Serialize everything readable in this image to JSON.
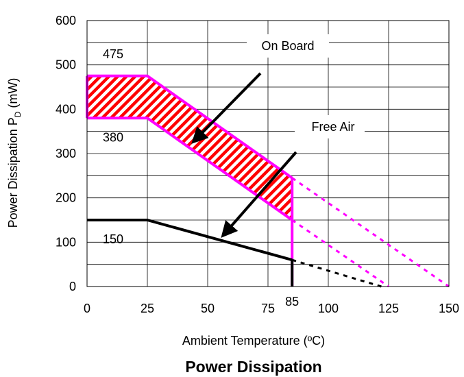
{
  "chart_data": {
    "type": "line",
    "title": "Power Dissipation",
    "xlabel": "Ambient Temperature (ºC)",
    "ylabel_main": "Power Dissipation P",
    "ylabel_sub": "D",
    "ylabel_unit": " (mW)",
    "xlim": [
      0,
      150
    ],
    "ylim": [
      0,
      600
    ],
    "x_ticks": [
      "0",
      "25",
      "50",
      "75",
      "100",
      "125",
      "150"
    ],
    "y_ticks": [
      "0",
      "100",
      "200",
      "300",
      "400",
      "500",
      "600"
    ],
    "extra_x_tick": "85",
    "grid": true,
    "colors": {
      "on_board": "#ff00ff",
      "hatch": "#ff0000",
      "free_air": "#000000"
    },
    "series": [
      {
        "name": "On Board",
        "upper": [
          [
            0,
            475
          ],
          [
            25,
            475
          ],
          [
            85,
            245
          ]
        ],
        "lower": [
          [
            0,
            380
          ],
          [
            25,
            380
          ],
          [
            85,
            150
          ]
        ],
        "cutoff_x": 85,
        "derating_upper": [
          [
            85,
            245
          ],
          [
            150,
            0
          ]
        ],
        "derating_lower": [
          [
            85,
            150
          ],
          [
            125,
            0
          ]
        ]
      },
      {
        "name": "Free Air",
        "values": [
          [
            0,
            150
          ],
          [
            25,
            150
          ],
          [
            85,
            60
          ]
        ],
        "cutoff_x": 85,
        "derating": [
          [
            85,
            60
          ],
          [
            122,
            0
          ]
        ]
      }
    ],
    "value_labels": [
      {
        "text": "475",
        "x": 475
      },
      {
        "text": "380",
        "x": 380
      },
      {
        "text": "150",
        "x": 150
      }
    ],
    "annotations": {
      "on_board": "On Board",
      "free_air": "Free Air"
    }
  }
}
